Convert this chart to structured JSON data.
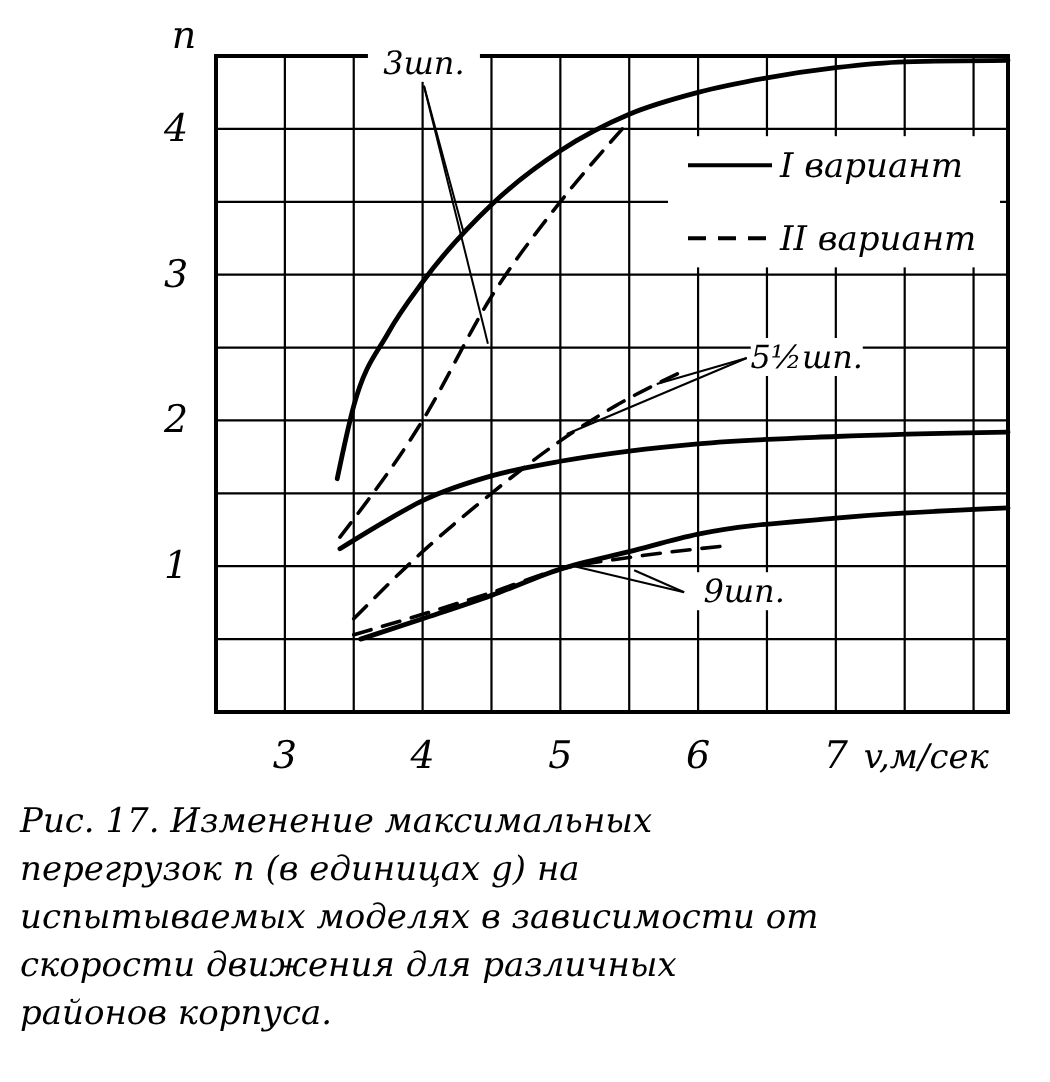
{
  "chart_data": {
    "type": "line",
    "xlabel": "v,м/сек",
    "ylabel": "n",
    "xlim": [
      2.5,
      8.25
    ],
    "ylim": [
      0,
      4.5
    ],
    "xticks": [
      3,
      4,
      5,
      6,
      7
    ],
    "yticks": [
      1,
      2,
      3,
      4
    ],
    "grid": true,
    "legend": "top right",
    "series": [
      {
        "name": "I вариант",
        "color": "#000000",
        "line_style": "solid",
        "x": [
          3.38,
          3.5,
          3.75,
          4.0,
          4.5,
          5.0,
          5.5,
          6.0,
          6.5,
          7.0,
          7.5,
          8.25
        ],
        "values": [
          1.6,
          2.1,
          2.6,
          2.95,
          3.48,
          3.85,
          4.1,
          4.25,
          4.35,
          4.42,
          4.46,
          4.47
        ]
      },
      {
        "name": "II вариант",
        "color": "#000000",
        "line_style": "dashed",
        "x": [
          3.4,
          4.0,
          4.5,
          5.0,
          5.45
        ],
        "values": [
          1.2,
          2.0,
          2.85,
          3.5,
          4.0
        ]
      },
      {
        "color": "#000000",
        "line_style": "solid",
        "x": [
          3.4,
          3.75,
          4.0,
          4.5,
          5.0,
          5.5,
          6.0,
          7.0,
          8.25
        ],
        "values": [
          1.12,
          1.32,
          1.45,
          1.62,
          1.72,
          1.79,
          1.84,
          1.89,
          1.92
        ]
      },
      {
        "color": "#000000",
        "line_style": "dashed",
        "x": [
          3.5,
          4.0,
          4.5,
          5.0,
          5.4,
          5.85
        ],
        "values": [
          0.64,
          1.1,
          1.5,
          1.86,
          2.1,
          2.32
        ]
      },
      {
        "color": "#000000",
        "line_style": "solid",
        "x": [
          3.55,
          4.0,
          4.5,
          5.0,
          5.5,
          6.0,
          7.0,
          8.25
        ],
        "values": [
          0.5,
          0.64,
          0.8,
          0.98,
          1.1,
          1.22,
          1.33,
          1.4
        ]
      },
      {
        "color": "#000000",
        "line_style": "dashed",
        "x": [
          3.5,
          4.0,
          4.5,
          5.0,
          5.5,
          6.2
        ],
        "values": [
          0.53,
          0.67,
          0.82,
          0.98,
          1.06,
          1.14
        ]
      }
    ],
    "annotations": [
      {
        "text": "3шп.",
        "x": 4.3,
        "y": 3.28
      },
      {
        "text": "5½шп.",
        "x": 5.7,
        "y": 2.25
      },
      {
        "text": "9шп.",
        "x": 5.1,
        "y": 1.0
      },
      "Рис. 17. Изменение максимальных перегрузок n (в единицах g) на испытываемых моделях в зависимости от скорости движения для различных районов корпуса."
    ]
  }
}
